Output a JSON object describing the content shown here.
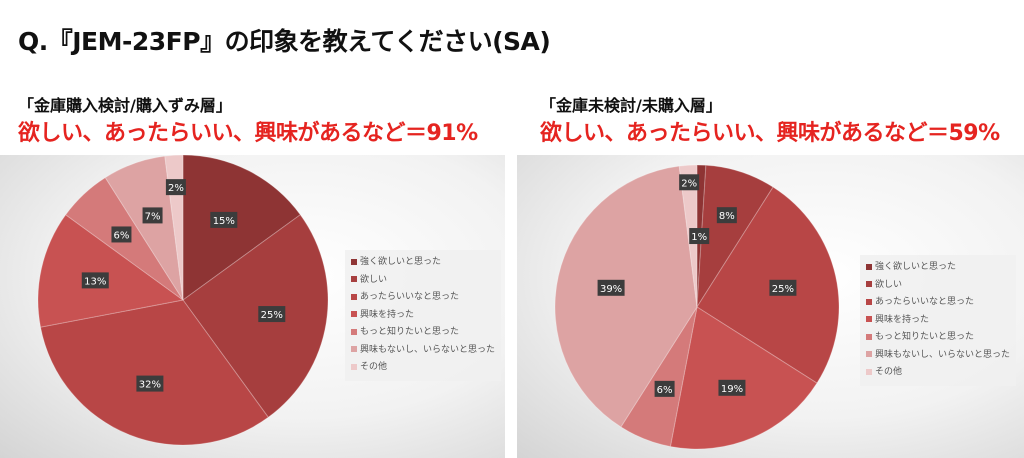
{
  "title": "Q.『JEM-23FP』の印象を教えてください(SA)",
  "colors": [
    "#8e3434",
    "#a63e3e",
    "#b84646",
    "#c85252",
    "#d47a7a",
    "#dda3a3",
    "#edc9c9"
  ],
  "chart_data": [
    {
      "type": "pie",
      "segment": "「金庫購入検討/購入ずみ層」",
      "headline": "欲しい、あったらいい、興味があるなど＝91%",
      "categories": [
        "強く欲しいと思った",
        "欲しい",
        "あったらいいなと思った",
        "興味を持った",
        "もっと知りたいと思った",
        "興味もないし、いらないと思った",
        "その他"
      ],
      "values": [
        15,
        25,
        32,
        13,
        6,
        7,
        2
      ],
      "labels": [
        "15%",
        "25%",
        "32%",
        "13%",
        "6%",
        "7%",
        "2%"
      ],
      "legend": "right"
    },
    {
      "type": "pie",
      "segment": "「金庫未検討/未購入層」",
      "headline": "欲しい、あったらいい、興味があるなど＝59%",
      "categories": [
        "強く欲しいと思った",
        "欲しい",
        "あったらいいなと思った",
        "興味を持った",
        "もっと知りたいと思った",
        "興味もないし、いらないと思った",
        "その他"
      ],
      "values": [
        1,
        8,
        25,
        19,
        6,
        39,
        2
      ],
      "labels": [
        "1%",
        "8%",
        "25%",
        "19%",
        "6%",
        "39%",
        "2%"
      ],
      "legend": "right"
    }
  ]
}
